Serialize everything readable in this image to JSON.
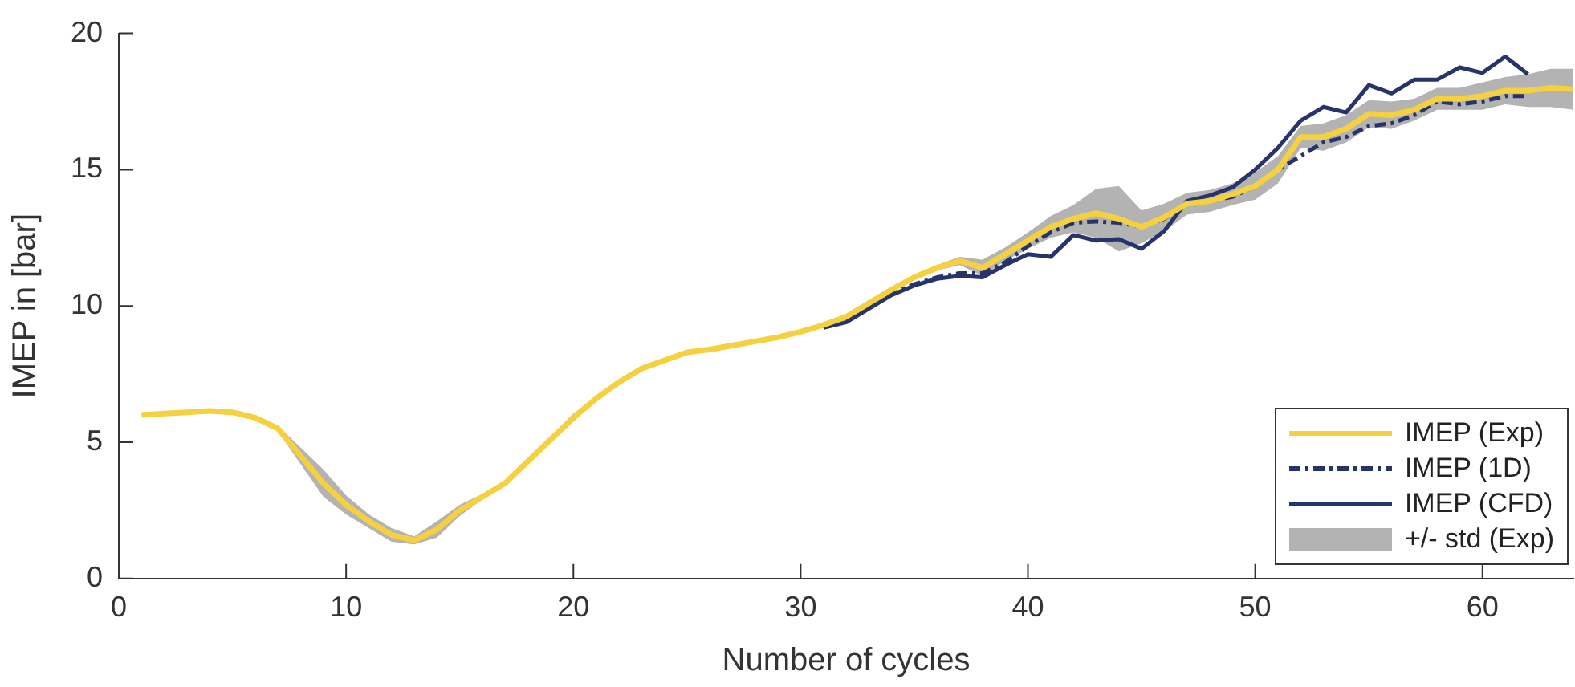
{
  "chart_data": {
    "type": "line",
    "xlabel": "Number of cycles",
    "ylabel": "IMEP in [bar]",
    "xlim": [
      0,
      64
    ],
    "xticks": [
      0,
      10,
      20,
      30,
      40,
      50,
      60
    ],
    "ylim": [
      0,
      20
    ],
    "yticks": [
      0,
      5,
      10,
      15,
      20
    ],
    "grid": false,
    "legend": "bottom right",
    "marker": "none",
    "annotations": [
      "+/- std (Exp)"
    ],
    "series": [
      {
        "name": "IMEP (Exp)",
        "color": "#f5d03f",
        "line_style": "solid",
        "x": [
          1,
          2,
          3,
          4,
          5,
          6,
          7,
          8,
          9,
          10,
          11,
          12,
          13,
          14,
          15,
          16,
          17,
          18,
          19,
          20,
          21,
          22,
          23,
          24,
          25,
          26,
          27,
          28,
          29,
          30,
          31,
          32,
          33,
          34,
          35,
          36,
          37,
          38,
          39,
          40,
          41,
          42,
          43,
          44,
          45,
          46,
          47,
          48,
          49,
          50,
          51,
          52,
          53,
          54,
          55,
          56,
          57,
          58,
          59,
          60,
          61,
          62,
          63,
          64
        ],
        "values": [
          6.0,
          6.05,
          6.1,
          6.15,
          6.1,
          5.9,
          5.5,
          4.5,
          3.5,
          2.7,
          2.1,
          1.6,
          1.4,
          1.8,
          2.5,
          3.0,
          3.5,
          4.3,
          5.1,
          5.9,
          6.6,
          7.2,
          7.7,
          8.0,
          8.3,
          8.4,
          8.55,
          8.7,
          8.85,
          9.05,
          9.3,
          9.6,
          10.1,
          10.6,
          11.05,
          11.4,
          11.65,
          11.4,
          11.9,
          12.4,
          12.9,
          13.2,
          13.4,
          13.2,
          12.9,
          13.25,
          13.75,
          13.85,
          14.1,
          14.4,
          15.0,
          16.2,
          16.2,
          16.5,
          17.05,
          17.0,
          17.2,
          17.6,
          17.6,
          17.7,
          17.9,
          17.9,
          18.0,
          17.95
        ],
        "lower": [
          6.0,
          6.05,
          6.1,
          6.15,
          6.1,
          5.9,
          5.4,
          4.2,
          3.0,
          2.35,
          1.85,
          1.35,
          1.25,
          1.5,
          2.3,
          2.9,
          3.4,
          4.2,
          5.0,
          5.75,
          6.55,
          7.15,
          7.65,
          7.95,
          8.25,
          8.35,
          8.5,
          8.65,
          8.8,
          9.0,
          9.2,
          9.5,
          10.0,
          10.5,
          10.95,
          11.3,
          11.5,
          11.1,
          11.65,
          12.1,
          12.5,
          12.7,
          12.5,
          12.0,
          12.3,
          12.75,
          13.35,
          13.45,
          13.7,
          13.9,
          14.5,
          15.8,
          15.7,
          16.0,
          16.55,
          16.5,
          16.8,
          17.2,
          17.2,
          17.2,
          17.4,
          17.3,
          17.3,
          17.2
        ],
        "upper": [
          6.0,
          6.05,
          6.1,
          6.15,
          6.1,
          5.9,
          5.6,
          4.8,
          4.0,
          3.05,
          2.35,
          1.85,
          1.55,
          2.1,
          2.7,
          3.1,
          3.6,
          4.4,
          5.2,
          6.05,
          6.65,
          7.25,
          7.75,
          8.05,
          8.35,
          8.45,
          8.6,
          8.75,
          8.9,
          9.1,
          9.4,
          9.7,
          10.2,
          10.7,
          11.15,
          11.5,
          11.8,
          11.7,
          12.15,
          12.7,
          13.3,
          13.7,
          14.3,
          14.4,
          13.5,
          13.75,
          14.15,
          14.25,
          14.5,
          14.9,
          15.5,
          16.6,
          16.7,
          17.0,
          17.55,
          17.5,
          17.6,
          18.0,
          18.0,
          18.2,
          18.4,
          18.5,
          18.7,
          18.7
        ]
      },
      {
        "name": "IMEP (1D)",
        "color": "#27336b",
        "line_style": "dashdot",
        "x": [
          31,
          32,
          33,
          34,
          35,
          36,
          37,
          38,
          39,
          40,
          41,
          42,
          43,
          44,
          45,
          46,
          47,
          48,
          49,
          50,
          51,
          52,
          53,
          54,
          55,
          56,
          57,
          58,
          59,
          60,
          61,
          62
        ],
        "values": [
          9.2,
          9.45,
          9.95,
          10.45,
          10.8,
          11.05,
          11.2,
          11.2,
          11.6,
          12.2,
          12.7,
          13.05,
          13.1,
          13.05,
          12.9,
          13.2,
          13.75,
          13.85,
          14.0,
          14.4,
          15.0,
          15.5,
          16.0,
          16.2,
          16.6,
          16.7,
          17.0,
          17.5,
          17.4,
          17.5,
          17.7,
          17.7
        ]
      },
      {
        "name": "IMEP (CFD)",
        "color": "#27336b",
        "line_style": "solid",
        "x": [
          31,
          32,
          33,
          34,
          35,
          36,
          37,
          38,
          39,
          40,
          41,
          42,
          43,
          44,
          45,
          46,
          47,
          48,
          49,
          50,
          51,
          52,
          53,
          54,
          55,
          56,
          57,
          58,
          59,
          60,
          61,
          62
        ],
        "values": [
          9.2,
          9.4,
          9.9,
          10.4,
          10.75,
          11.0,
          11.1,
          11.05,
          11.5,
          11.9,
          11.8,
          12.6,
          12.4,
          12.45,
          12.1,
          12.75,
          13.85,
          14.05,
          14.35,
          15.0,
          15.8,
          16.8,
          17.3,
          17.1,
          18.1,
          17.8,
          18.3,
          18.3,
          18.75,
          18.55,
          19.15,
          18.5
        ]
      }
    ]
  }
}
